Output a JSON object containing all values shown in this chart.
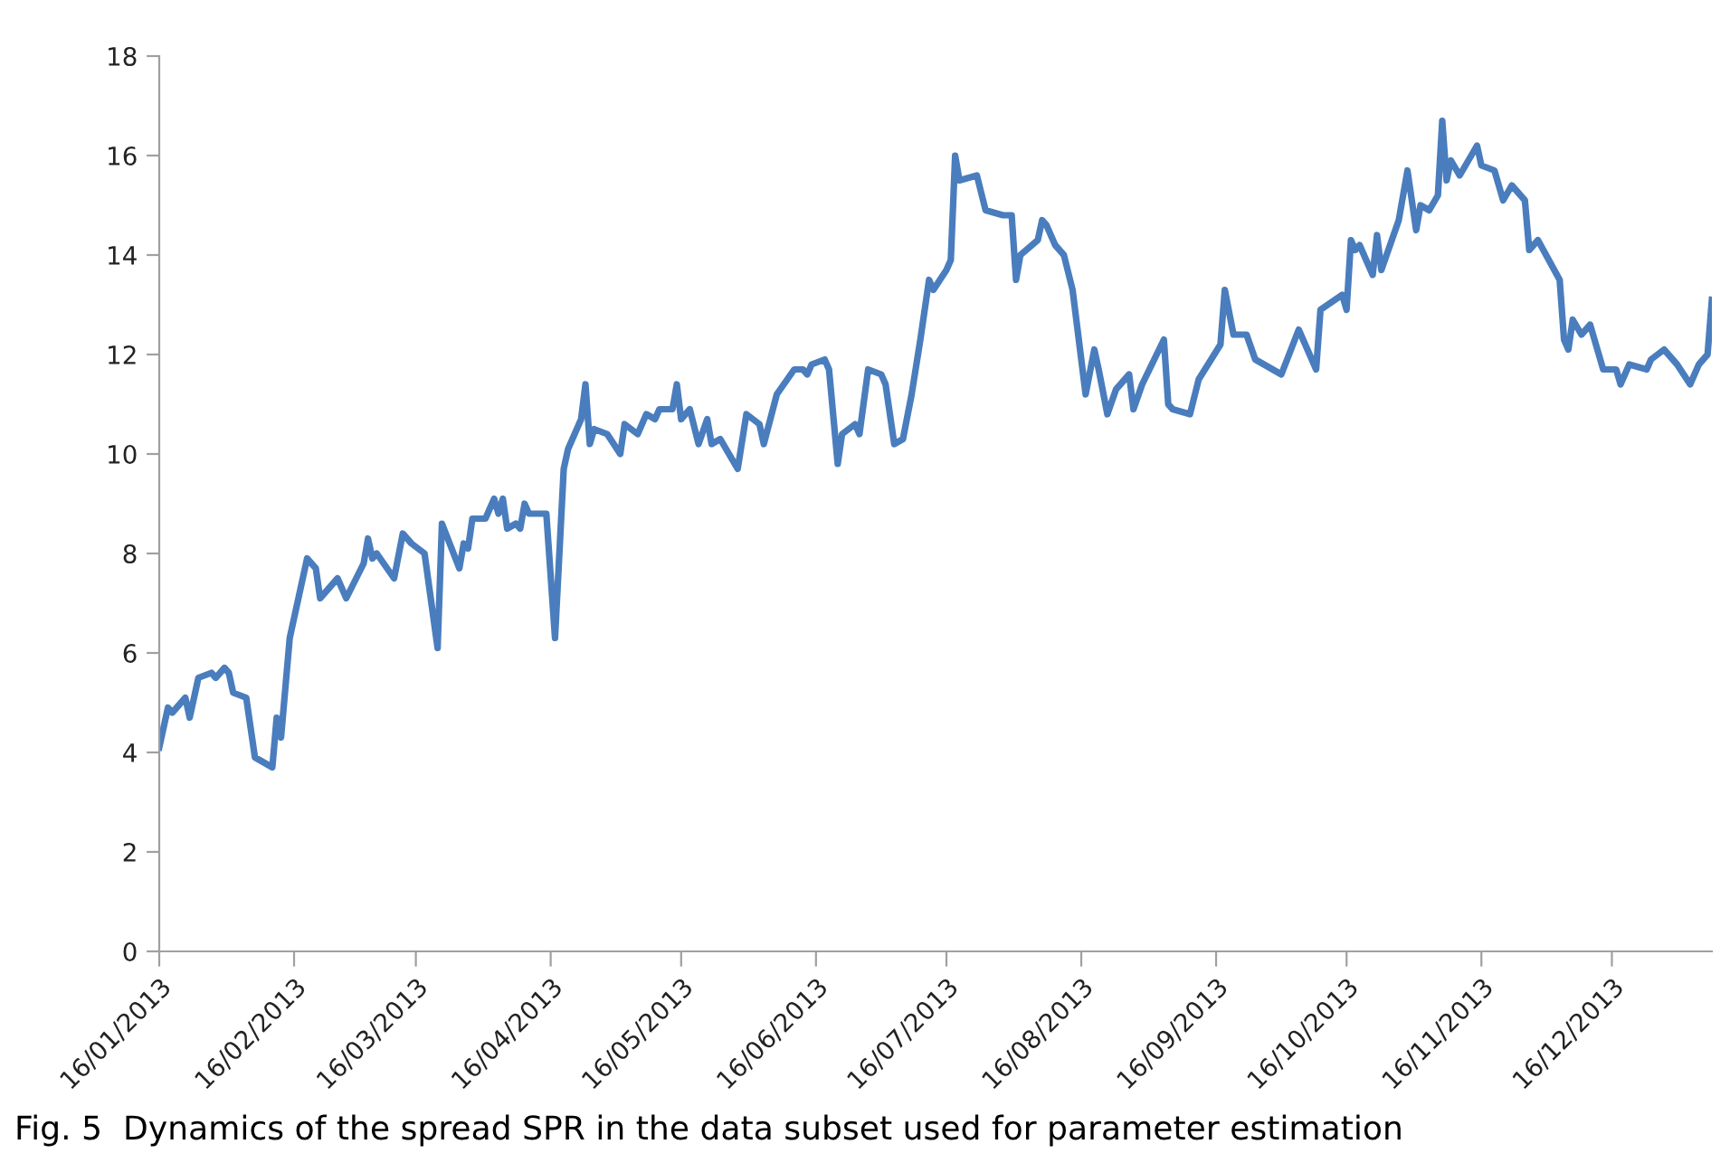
{
  "chart_data": {
    "type": "line",
    "annotations": [
      "Fig. 5  Dynamics of the spread SPR in the data subset used for parameter estimation"
    ],
    "xlim": [
      "2013-01-16",
      "2014-01-08"
    ],
    "ylim": [
      0,
      18
    ],
    "yticks": [
      0,
      2,
      4,
      6,
      8,
      10,
      12,
      14,
      16,
      18
    ],
    "xticks": [
      {
        "value": "2013-01-16",
        "label": "16/01/2013"
      },
      {
        "value": "2013-02-16",
        "label": "16/02/2013"
      },
      {
        "value": "2013-03-16",
        "label": "16/03/2013"
      },
      {
        "value": "2013-04-16",
        "label": "16/04/2013"
      },
      {
        "value": "2013-05-16",
        "label": "16/05/2013"
      },
      {
        "value": "2013-06-16",
        "label": "16/06/2013"
      },
      {
        "value": "2013-07-16",
        "label": "16/07/2013"
      },
      {
        "value": "2013-08-16",
        "label": "16/08/2013"
      },
      {
        "value": "2013-09-16",
        "label": "16/09/2013"
      },
      {
        "value": "2013-10-16",
        "label": "16/10/2013"
      },
      {
        "value": "2013-11-16",
        "label": "16/11/2013"
      },
      {
        "value": "2013-12-16",
        "label": "16/12/2013"
      }
    ],
    "grid": false,
    "legend": false,
    "marker": "none",
    "line_style": "solid",
    "series": [
      {
        "color": "#4a7dbd",
        "x": [
          "2013-01-16",
          "2013-01-18",
          "2013-01-19",
          "2013-01-22",
          "2013-01-23",
          "2013-01-25",
          "2013-01-28",
          "2013-01-29",
          "2013-01-31",
          "2013-02-01",
          "2013-02-02",
          "2013-02-05",
          "2013-02-07",
          "2013-02-11",
          "2013-02-12",
          "2013-02-13",
          "2013-02-15",
          "2013-02-17",
          "2013-02-19",
          "2013-02-21",
          "2013-02-22",
          "2013-02-26",
          "2013-02-28",
          "2013-03-04",
          "2013-03-05",
          "2013-03-06",
          "2013-03-07",
          "2013-03-11",
          "2013-03-13",
          "2013-03-15",
          "2013-03-18",
          "2013-03-21",
          "2013-03-22",
          "2013-03-26",
          "2013-03-27",
          "2013-03-28",
          "2013-03-29",
          "2013-04-01",
          "2013-04-03",
          "2013-04-04",
          "2013-04-05",
          "2013-04-06",
          "2013-04-08",
          "2013-04-09",
          "2013-04-10",
          "2013-04-11",
          "2013-04-15",
          "2013-04-17",
          "2013-04-19",
          "2013-04-20",
          "2013-04-23",
          "2013-04-24",
          "2013-04-25",
          "2013-04-26",
          "2013-04-29",
          "2013-05-02",
          "2013-05-03",
          "2013-05-06",
          "2013-05-08",
          "2013-05-10",
          "2013-05-11",
          "2013-05-14",
          "2013-05-15",
          "2013-05-16",
          "2013-05-18",
          "2013-05-20",
          "2013-05-22",
          "2013-05-23",
          "2013-05-25",
          "2013-05-29",
          "2013-05-31",
          "2013-06-03",
          "2013-06-04",
          "2013-06-07",
          "2013-06-11",
          "2013-06-13",
          "2013-06-14",
          "2013-06-15",
          "2013-06-18",
          "2013-06-19",
          "2013-06-21",
          "2013-06-22",
          "2013-06-25",
          "2013-06-26",
          "2013-06-28",
          "2013-07-01",
          "2013-07-02",
          "2013-07-04",
          "2013-07-06",
          "2013-07-08",
          "2013-07-10",
          "2013-07-12",
          "2013-07-13",
          "2013-07-16",
          "2013-07-17",
          "2013-07-18",
          "2013-07-19",
          "2013-07-23",
          "2013-07-25",
          "2013-07-29",
          "2013-07-31",
          "2013-08-01",
          "2013-08-02",
          "2013-08-06",
          "2013-08-07",
          "2013-08-08",
          "2013-08-10",
          "2013-08-12",
          "2013-08-14",
          "2013-08-17",
          "2013-08-19",
          "2013-08-20",
          "2013-08-22",
          "2013-08-24",
          "2013-08-27",
          "2013-08-28",
          "2013-08-30",
          "2013-09-04",
          "2013-09-05",
          "2013-09-06",
          "2013-09-10",
          "2013-09-12",
          "2013-09-17",
          "2013-09-18",
          "2013-09-20",
          "2013-09-23",
          "2013-09-25",
          "2013-10-01",
          "2013-10-05",
          "2013-10-09",
          "2013-10-10",
          "2013-10-15",
          "2013-10-16",
          "2013-10-17",
          "2013-10-18",
          "2013-10-19",
          "2013-10-22",
          "2013-10-23",
          "2013-10-24",
          "2013-10-28",
          "2013-10-30",
          "2013-11-01",
          "2013-11-02",
          "2013-11-04",
          "2013-11-06",
          "2013-11-07",
          "2013-11-08",
          "2013-11-09",
          "2013-11-11",
          "2013-11-15",
          "2013-11-16",
          "2013-11-19",
          "2013-11-21",
          "2013-11-23",
          "2013-11-26",
          "2013-11-27",
          "2013-11-29",
          "2013-12-04",
          "2013-12-05",
          "2013-12-06",
          "2013-12-07",
          "2013-12-09",
          "2013-12-11",
          "2013-12-14",
          "2013-12-17",
          "2013-12-18",
          "2013-12-20",
          "2013-12-24",
          "2013-12-25",
          "2013-12-28",
          "2013-12-31",
          "2014-01-03",
          "2014-01-05",
          "2014-01-07",
          "2014-01-08"
        ],
        "values": [
          4.1,
          4.9,
          4.8,
          5.1,
          4.7,
          5.5,
          5.6,
          5.5,
          5.7,
          5.6,
          5.2,
          5.1,
          3.9,
          3.7,
          4.7,
          4.3,
          6.3,
          7.1,
          7.9,
          7.7,
          7.1,
          7.5,
          7.1,
          7.8,
          8.3,
          7.9,
          8.0,
          7.5,
          8.4,
          8.2,
          8.0,
          6.1,
          8.6,
          7.7,
          8.2,
          8.1,
          8.7,
          8.7,
          9.1,
          8.8,
          9.1,
          8.5,
          8.6,
          8.5,
          9.0,
          8.8,
          8.8,
          6.3,
          9.7,
          10.1,
          10.7,
          11.4,
          10.2,
          10.5,
          10.4,
          10.0,
          10.6,
          10.4,
          10.8,
          10.7,
          10.9,
          10.9,
          11.4,
          10.7,
          10.9,
          10.2,
          10.7,
          10.2,
          10.3,
          9.7,
          10.8,
          10.6,
          10.2,
          11.2,
          11.7,
          11.7,
          11.6,
          11.8,
          11.9,
          11.7,
          9.8,
          10.4,
          10.6,
          10.4,
          11.7,
          11.6,
          11.4,
          10.2,
          10.3,
          11.2,
          12.3,
          13.5,
          13.3,
          13.7,
          13.9,
          16.0,
          15.5,
          15.6,
          14.9,
          14.8,
          14.8,
          13.5,
          14.0,
          14.3,
          14.7,
          14.6,
          14.2,
          14.0,
          13.3,
          11.2,
          12.1,
          11.7,
          10.8,
          11.3,
          11.6,
          10.9,
          11.4,
          12.3,
          11.0,
          10.9,
          10.8,
          11.5,
          12.2,
          13.3,
          12.4,
          12.4,
          11.9,
          11.6,
          12.5,
          11.7,
          12.9,
          13.2,
          12.9,
          14.3,
          14.1,
          14.2,
          13.6,
          14.4,
          13.7,
          14.7,
          15.7,
          14.5,
          15.0,
          14.9,
          15.2,
          16.7,
          15.5,
          15.9,
          15.6,
          16.2,
          15.8,
          15.7,
          15.1,
          15.4,
          15.1,
          14.1,
          14.3,
          13.5,
          12.3,
          12.1,
          12.7,
          12.4,
          12.6,
          11.7,
          11.7,
          11.4,
          11.8,
          11.7,
          11.9,
          12.1,
          11.8,
          11.4,
          11.8,
          12.0,
          13.1
        ]
      }
    ]
  }
}
